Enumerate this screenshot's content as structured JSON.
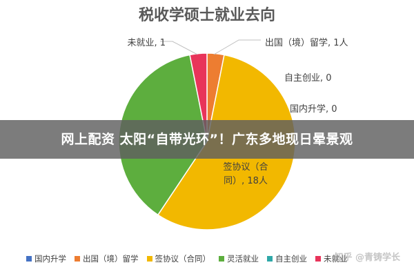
{
  "chart_data": {
    "type": "pie",
    "title": "税收学硕士就业去向",
    "categories": [
      "国内升学",
      "出国（境）留学",
      "签协议（合同）",
      "灵活就业",
      "自主创业",
      "未就业"
    ],
    "values": [
      0,
      1,
      18,
      12,
      0,
      1
    ],
    "colors": [
      "#4472C4",
      "#ED7D31",
      "#F2B800",
      "#5DAE3E",
      "#2FA8A8",
      "#E8345A"
    ],
    "labels": [
      "国内升学, 0",
      "出国（境）留学, 1人",
      "签协议（合\n同）, 18人",
      "",
      "自主创业, 0",
      "未就业, 1"
    ],
    "legend_position": "bottom"
  },
  "banner": {
    "text": "网上配资 太阳“自带光环”！广东多地现日晕景观"
  },
  "watermark": {
    "text": "知乎 @青铸学长"
  }
}
